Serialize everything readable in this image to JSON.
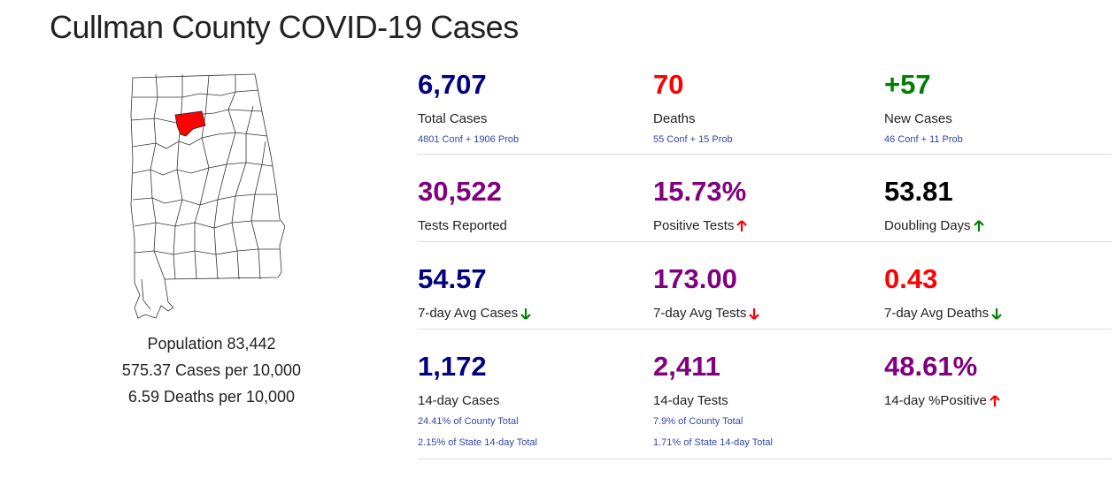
{
  "title": "Cullman County COVID-19 Cases",
  "colors": {
    "navy": "#000080",
    "purple": "#800080",
    "red": "#ff0000",
    "green": "#008000",
    "black": "#000000",
    "highlight": "#ff0000"
  },
  "summary": {
    "population": "Population 83,442",
    "cases_per": "575.37 Cases per 10,000",
    "deaths_per": "6.59 Deaths per 10,000"
  },
  "stats": {
    "total_cases": {
      "value": "6,707",
      "label": "Total Cases",
      "sub": "4801 Conf + 1906 Prob"
    },
    "deaths": {
      "value": "70",
      "label": "Deaths",
      "sub": "55 Conf + 15 Prob"
    },
    "new_cases": {
      "value": "+57",
      "label": "New Cases",
      "sub": "46 Conf + 11 Prob"
    },
    "tests_reported": {
      "value": "30,522",
      "label": "Tests Reported"
    },
    "positive_tests": {
      "value": "15.73%",
      "label": "Positive Tests",
      "trend": "up",
      "trend_color": "#ff0000"
    },
    "doubling_days": {
      "value": "53.81",
      "label": "Doubling Days",
      "trend": "up",
      "trend_color": "#008000"
    },
    "avg7_cases": {
      "value": "54.57",
      "label": "7-day Avg Cases",
      "trend": "down",
      "trend_color": "#008000"
    },
    "avg7_tests": {
      "value": "173.00",
      "label": "7-day Avg Tests",
      "trend": "down",
      "trend_color": "#ff0000"
    },
    "avg7_deaths": {
      "value": "0.43",
      "label": "7-day Avg Deaths",
      "trend": "down",
      "trend_color": "#008000"
    },
    "cases14": {
      "value": "1,172",
      "label": "14-day Cases",
      "sub": "24.41% of County Total",
      "sub2": "2.15% of State 14-day Total"
    },
    "tests14": {
      "value": "2,411",
      "label": "14-day Tests",
      "sub": "7.9% of County Total",
      "sub2": "1.71% of State 14-day Total"
    },
    "pos14": {
      "value": "48.61%",
      "label": "14-day %Positive",
      "trend": "up",
      "trend_color": "#ff0000"
    }
  }
}
